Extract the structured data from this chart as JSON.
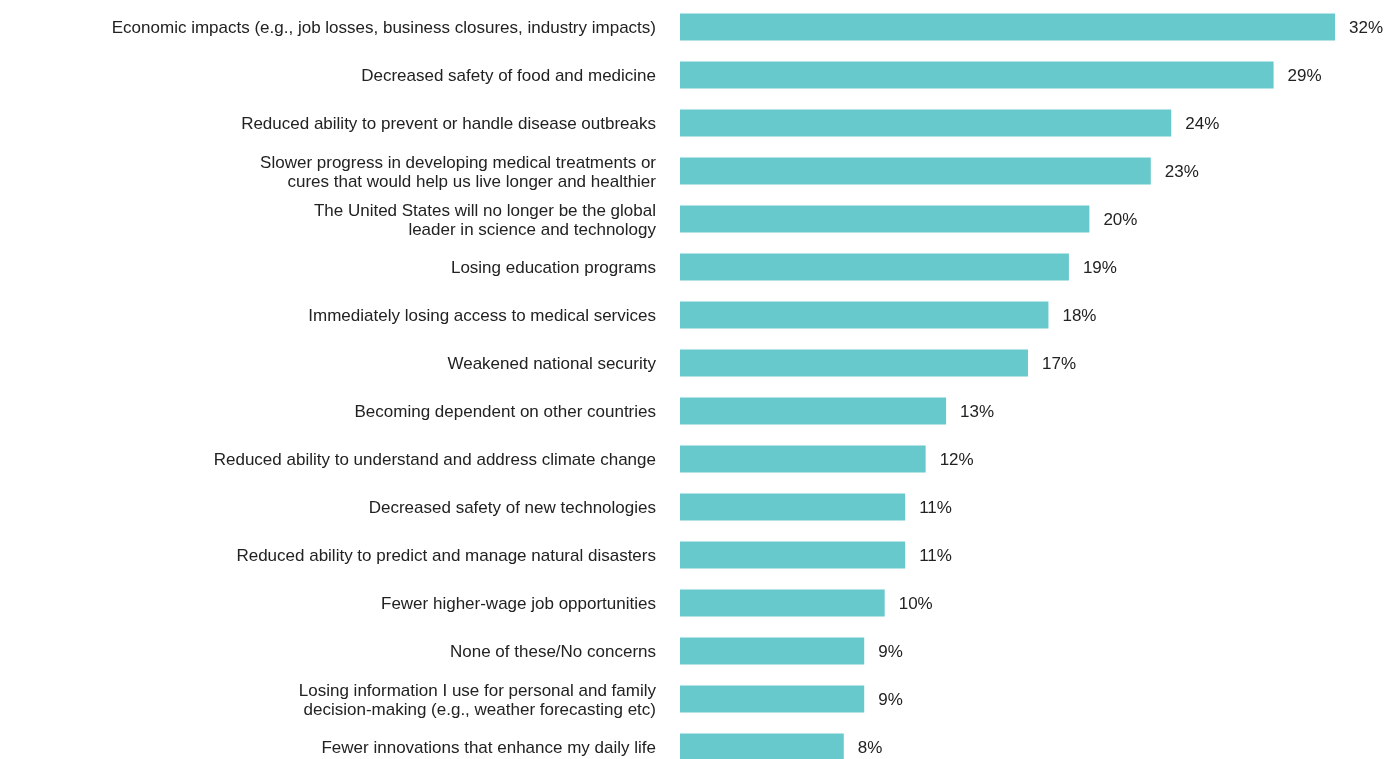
{
  "chart_data": {
    "type": "bar",
    "orientation": "horizontal",
    "categories": [
      "Economic impacts (e.g., job losses, business closures, industry impacts)",
      "Decreased safety of food and medicine",
      "Reduced ability to prevent or handle disease outbreaks",
      "Slower progress in developing medical treatments or\ncures that would help us live longer and healthier",
      "The United States will no longer be the global\nleader in science and technology",
      "Losing education programs",
      "Immediately losing access to medical services",
      "Weakened national security",
      "Becoming dependent on other countries",
      "Reduced ability to understand and address climate change",
      "Decreased safety of new technologies",
      "Reduced ability to predict and manage natural disasters",
      "Fewer higher-wage job opportunities",
      "None of these/No concerns",
      "Losing information I use for personal and family\ndecision-making (e.g., weather forecasting etc)",
      "Fewer innovations that enhance my daily life"
    ],
    "values": [
      32,
      29,
      24,
      23,
      20,
      19,
      18,
      17,
      13,
      12,
      11,
      11,
      10,
      9,
      9,
      8
    ],
    "value_labels": [
      "32%",
      "29%",
      "24%",
      "23%",
      "20%",
      "19%",
      "18%",
      "17%",
      "13%",
      "12%",
      "11%",
      "11%",
      "10%",
      "9%",
      "9%",
      "8%"
    ],
    "color": "#68c9cc"
  }
}
